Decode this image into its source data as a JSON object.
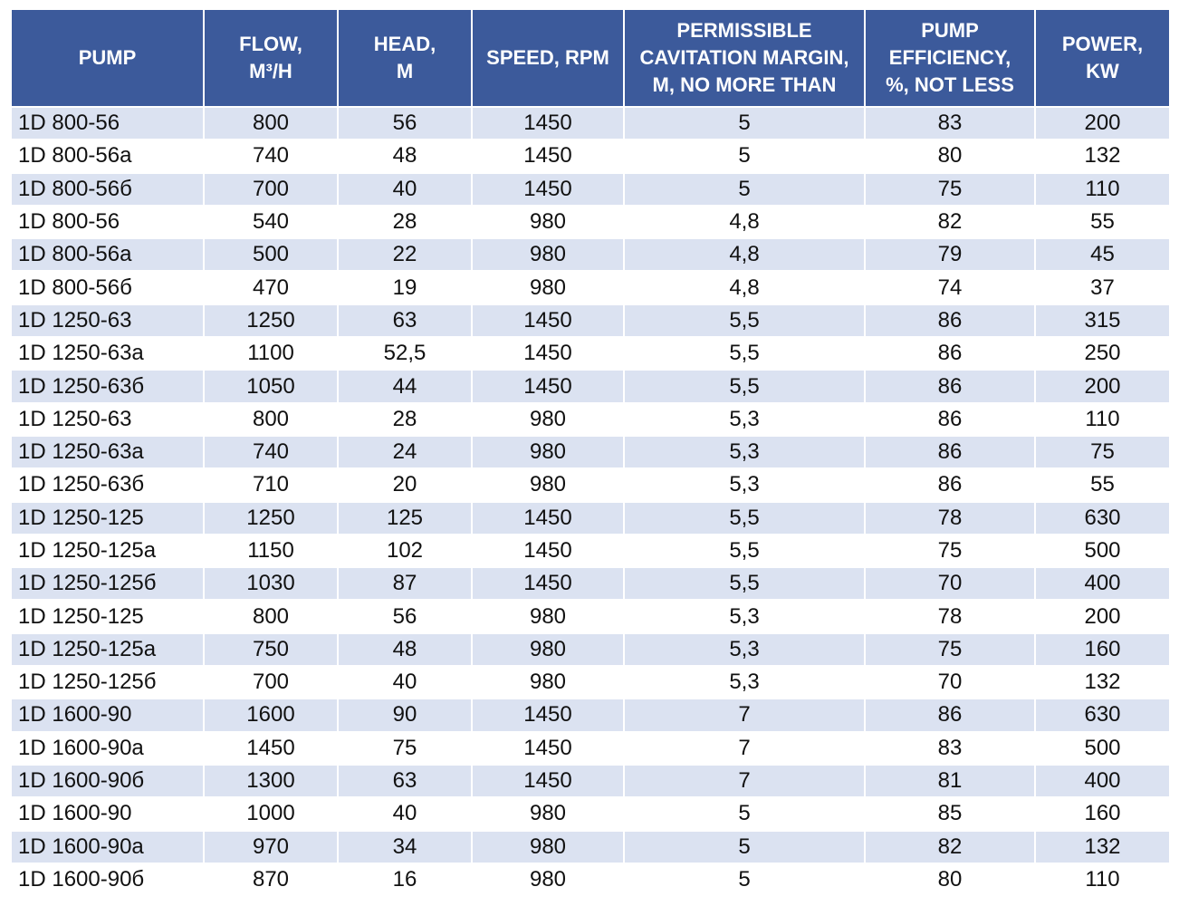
{
  "table": {
    "header": [
      [
        "PUMP"
      ],
      [
        "FLOW,",
        "M³/H"
      ],
      [
        "HEAD,",
        "M"
      ],
      [
        "SPEED, RPM"
      ],
      [
        "PERMISSIBLE",
        "CAVITATION MARGIN,",
        "M, NO MORE THAN"
      ],
      [
        "PUMP",
        "EFFICIENCY,",
        "%, NOT LESS"
      ],
      [
        "POWER,",
        "KW"
      ]
    ],
    "rows": [
      [
        "1D 800-56",
        "800",
        "56",
        "1450",
        "5",
        "83",
        "200"
      ],
      [
        "1D 800-56a",
        "740",
        "48",
        "1450",
        "5",
        "80",
        "132"
      ],
      [
        "1D 800-56б",
        "700",
        "40",
        "1450",
        "5",
        "75",
        "110"
      ],
      [
        "1D 800-56",
        "540",
        "28",
        "980",
        "4,8",
        "82",
        "55"
      ],
      [
        "1D 800-56a",
        "500",
        "22",
        "980",
        "4,8",
        "79",
        "45"
      ],
      [
        "1D 800-56б",
        "470",
        "19",
        "980",
        "4,8",
        "74",
        "37"
      ],
      [
        "1D 1250-63",
        "1250",
        "63",
        "1450",
        "5,5",
        "86",
        "315"
      ],
      [
        "1D 1250-63a",
        "1100",
        "52,5",
        "1450",
        "5,5",
        "86",
        "250"
      ],
      [
        "1D 1250-63б",
        "1050",
        "44",
        "1450",
        "5,5",
        "86",
        "200"
      ],
      [
        "1D 1250-63",
        "800",
        "28",
        "980",
        "5,3",
        "86",
        "110"
      ],
      [
        "1D 1250-63a",
        "740",
        "24",
        "980",
        "5,3",
        "86",
        "75"
      ],
      [
        "1D 1250-63б",
        "710",
        "20",
        "980",
        "5,3",
        "86",
        "55"
      ],
      [
        "1D 1250-125",
        "1250",
        "125",
        "1450",
        "5,5",
        "78",
        "630"
      ],
      [
        "1D 1250-125a",
        "1150",
        "102",
        "1450",
        "5,5",
        "75",
        "500"
      ],
      [
        "1D 1250-125б",
        "1030",
        "87",
        "1450",
        "5,5",
        "70",
        "400"
      ],
      [
        "1D 1250-125",
        "800",
        "56",
        "980",
        "5,3",
        "78",
        "200"
      ],
      [
        "1D 1250-125a",
        "750",
        "48",
        "980",
        "5,3",
        "75",
        "160"
      ],
      [
        "1D 1250-125б",
        "700",
        "40",
        "980",
        "5,3",
        "70",
        "132"
      ],
      [
        "1D 1600-90",
        "1600",
        "90",
        "1450",
        "7",
        "86",
        "630"
      ],
      [
        "1D 1600-90a",
        "1450",
        "75",
        "1450",
        "7",
        "83",
        "500"
      ],
      [
        "1D 1600-90б",
        "1300",
        "63",
        "1450",
        "7",
        "81",
        "400"
      ],
      [
        "1D 1600-90",
        "1000",
        "40",
        "980",
        "5",
        "85",
        "160"
      ],
      [
        "1D 1600-90a",
        "970",
        "34",
        "980",
        "5",
        "82",
        "132"
      ],
      [
        "1D 1600-90б",
        "870",
        "16",
        "980",
        "5",
        "80",
        "110"
      ]
    ]
  }
}
